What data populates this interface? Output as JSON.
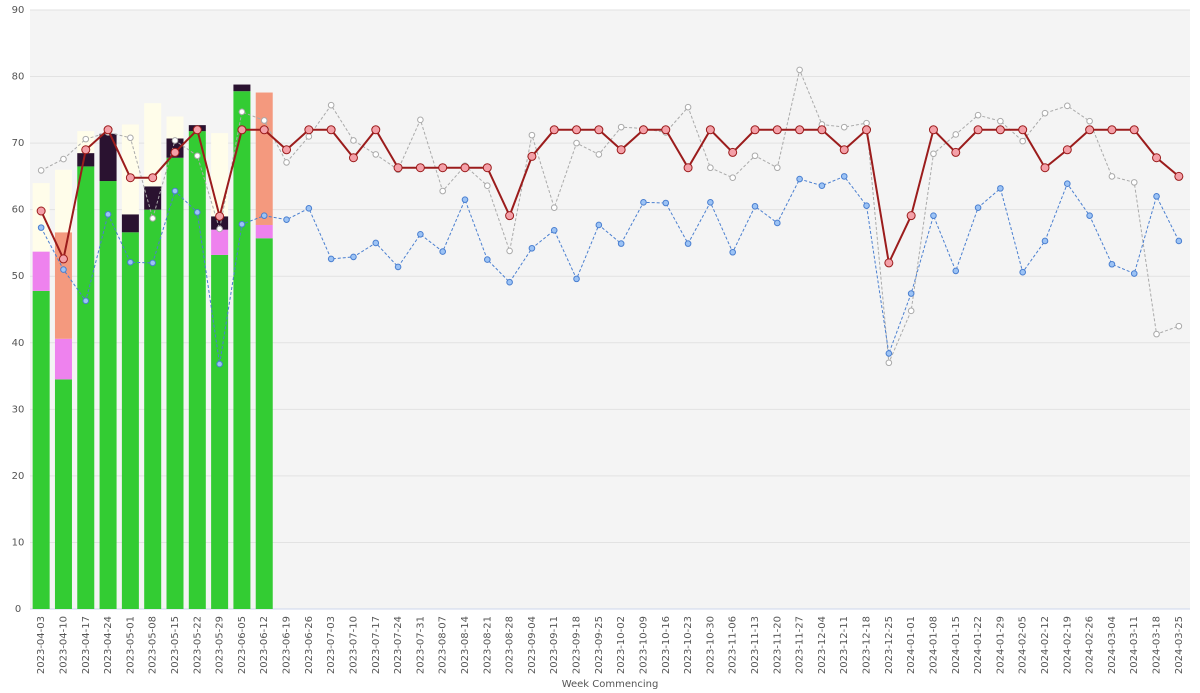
{
  "chart_data": {
    "type": "bar",
    "stacked": true,
    "grid": true,
    "x_label": "Week Commencing",
    "categories": [
      "2023-04-03",
      "2023-04-10",
      "2023-04-17",
      "2023-04-24",
      "2023-05-01",
      "2023-05-08",
      "2023-05-15",
      "2023-05-22",
      "2023-05-29",
      "2023-06-05",
      "2023-06-12",
      "2023-06-19",
      "2023-06-26",
      "2023-07-03",
      "2023-07-10",
      "2023-07-17",
      "2023-07-24",
      "2023-07-31",
      "2023-08-07",
      "2023-08-14",
      "2023-08-21",
      "2023-08-28",
      "2023-09-04",
      "2023-09-11",
      "2023-09-18",
      "2023-09-25",
      "2023-10-02",
      "2023-10-09",
      "2023-10-16",
      "2023-10-23",
      "2023-10-30",
      "2023-11-06",
      "2023-11-13",
      "2023-11-20",
      "2023-11-27",
      "2023-12-04",
      "2023-12-11",
      "2023-12-18",
      "2023-12-25",
      "2024-01-01",
      "2024-01-08",
      "2024-01-15",
      "2024-01-22",
      "2024-01-29",
      "2024-02-05",
      "2024-02-12",
      "2024-02-19",
      "2024-02-26",
      "2024-03-04",
      "2024-03-11",
      "2024-03-18",
      "2024-03-25"
    ],
    "ylim": [
      0,
      90
    ],
    "yticks": [
      0,
      10,
      20,
      30,
      40,
      50,
      60,
      70,
      80,
      90
    ],
    "series": [
      {
        "type": "bar",
        "color": "#33cc33",
        "values": [
          47.8,
          34.5,
          66.5,
          64.3,
          56.6,
          60,
          67.8,
          71.8,
          53.2,
          77.8,
          55.7,
          null,
          null,
          null,
          null,
          null,
          null,
          null,
          null,
          null,
          null,
          null,
          null,
          null,
          null,
          null,
          null,
          null,
          null,
          null,
          null,
          null,
          null,
          null,
          null,
          null,
          null,
          null,
          null,
          null,
          null,
          null,
          null,
          null,
          null,
          null,
          null,
          null,
          null,
          null,
          null,
          null
        ]
      },
      {
        "type": "bar",
        "color": "#ee82ee",
        "values": [
          5.9,
          6.1,
          null,
          null,
          null,
          null,
          null,
          null,
          3.8,
          null,
          2,
          null,
          null,
          null,
          null,
          null,
          null,
          null,
          null,
          null,
          null,
          null,
          null,
          null,
          null,
          null,
          null,
          null,
          null,
          null,
          null,
          null,
          null,
          null,
          null,
          null,
          null,
          null,
          null,
          null,
          null,
          null,
          null,
          null,
          null,
          null,
          null,
          null,
          null,
          null,
          null,
          null
        ]
      },
      {
        "type": "bar",
        "color": "#f4997e",
        "values": [
          null,
          16,
          null,
          null,
          null,
          null,
          null,
          null,
          null,
          null,
          19.9,
          null,
          null,
          null,
          null,
          null,
          null,
          null,
          null,
          null,
          null,
          null,
          null,
          null,
          null,
          null,
          null,
          null,
          null,
          null,
          null,
          null,
          null,
          null,
          null,
          null,
          null,
          null,
          null,
          null,
          null,
          null,
          null,
          null,
          null,
          null,
          null,
          null,
          null,
          null,
          null,
          null
        ]
      },
      {
        "type": "bar",
        "color": "#2a1230",
        "values": [
          null,
          null,
          2,
          7.1,
          2.7,
          3.5,
          2.9,
          0.9,
          2,
          1,
          null,
          null,
          null,
          null,
          null,
          null,
          null,
          null,
          null,
          null,
          null,
          null,
          null,
          null,
          null,
          null,
          null,
          null,
          null,
          null,
          null,
          null,
          null,
          null,
          null,
          null,
          null,
          null,
          null,
          null,
          null,
          null,
          null,
          null,
          null,
          null,
          null,
          null,
          null,
          null,
          null,
          null
        ]
      },
      {
        "type": "bar",
        "color": "#fffdea",
        "values": [
          10.3,
          9.4,
          3.3,
          null,
          13.5,
          12.5,
          3.3,
          null,
          12.5,
          null,
          null,
          null,
          null,
          null,
          null,
          null,
          null,
          null,
          null,
          null,
          null,
          null,
          null,
          null,
          null,
          null,
          null,
          null,
          null,
          null,
          null,
          null,
          null,
          null,
          null,
          null,
          null,
          null,
          null,
          null,
          null,
          null,
          null,
          null,
          null,
          null,
          null,
          null,
          null,
          null,
          null,
          null
        ]
      },
      {
        "type": "line",
        "color": "#aaaaaa",
        "marker_color": "#ffffff",
        "dashed": true,
        "values": [
          65.9,
          67.6,
          70.6,
          71.6,
          70.8,
          58.7,
          70.4,
          68.1,
          57.1,
          74.7,
          73.4,
          67.1,
          71,
          75.7,
          70.4,
          68.3,
          66,
          73.5,
          62.8,
          66.6,
          63.6,
          53.8,
          71.2,
          60.3,
          70,
          68.3,
          72.4,
          72.2,
          71.6,
          75.4,
          66.3,
          64.8,
          68.1,
          66.3,
          81,
          72.8,
          72.4,
          73,
          37,
          44.8,
          68.4,
          71.3,
          74.2,
          73.3,
          70.3,
          74.5,
          75.6,
          73.3,
          65,
          64.1,
          41.3,
          42.5
        ]
      },
      {
        "type": "line",
        "color": "#4a7fd0",
        "marker_color": "#9cc3f5",
        "dashed": true,
        "values": [
          57.3,
          51,
          46.3,
          59.3,
          52.1,
          52,
          62.8,
          59.6,
          36.8,
          57.8,
          59.1,
          58.5,
          60.2,
          52.6,
          52.9,
          55,
          51.4,
          56.3,
          53.7,
          61.5,
          52.5,
          49.1,
          54.2,
          56.9,
          49.6,
          57.7,
          54.9,
          61.1,
          61,
          54.9,
          61.1,
          53.6,
          60.5,
          58,
          64.6,
          63.6,
          65,
          60.6,
          38.4,
          47.4,
          59.1,
          50.8,
          60.3,
          63.2,
          50.6,
          55.3,
          63.9,
          59.1,
          51.8,
          50.4,
          62,
          55.3
        ]
      },
      {
        "type": "line",
        "color": "#9b1c1c",
        "marker_color": "#f4a0a8",
        "dashed": false,
        "values": [
          59.8,
          52.6,
          69,
          72,
          64.8,
          64.8,
          68.6,
          72,
          59,
          72,
          72,
          69,
          72,
          72,
          67.8,
          72,
          66.3,
          66.3,
          66.3,
          66.3,
          66.3,
          59.1,
          68,
          72,
          72,
          72,
          69,
          72,
          72,
          66.3,
          72,
          68.6,
          72,
          72,
          72,
          72,
          69,
          72,
          52,
          59.1,
          72,
          68.6,
          72,
          72,
          72,
          66.3,
          69,
          72,
          72,
          72,
          67.8,
          65
        ]
      }
    ]
  }
}
